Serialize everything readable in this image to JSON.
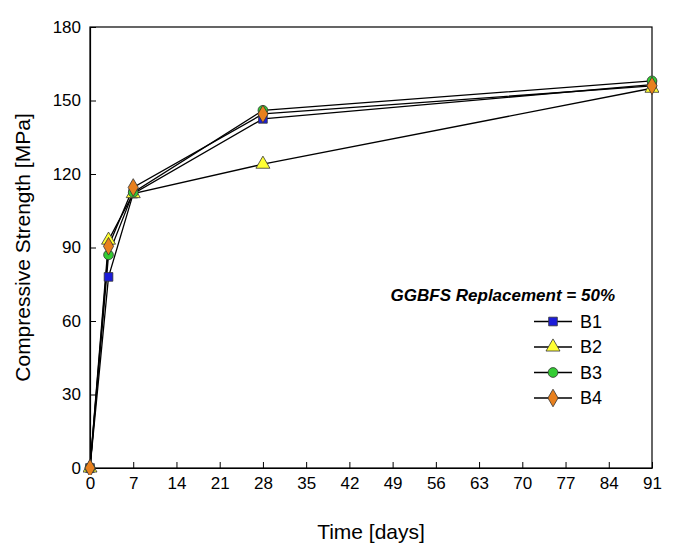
{
  "chart_data": {
    "type": "line",
    "x_label": "Time [days]",
    "y_label": "Compressive Strength [MPa]",
    "annotations": [
      "GGBFS Replacement = 50%"
    ],
    "x": [
      0,
      3,
      7,
      28,
      91
    ],
    "series": [
      {
        "name": "B1",
        "color": "#1c1cd9",
        "marker": "square",
        "values": [
          0,
          78,
          112,
          142.5,
          156.5
        ]
      },
      {
        "name": "B2",
        "color": "#ffff33",
        "marker": "triangle",
        "values": [
          0,
          93,
          112,
          124,
          155
        ]
      },
      {
        "name": "B3",
        "color": "#33cc33",
        "marker": "circle",
        "values": [
          0,
          87,
          112.5,
          146,
          158
        ]
      },
      {
        "name": "B4",
        "color": "#e8801e",
        "marker": "diamond",
        "values": [
          0,
          90.5,
          114.5,
          144.5,
          156
        ]
      }
    ],
    "xlim": [
      0,
      91
    ],
    "xticks": [
      0,
      7,
      14,
      21,
      28,
      35,
      42,
      49,
      56,
      63,
      70,
      77,
      84,
      91
    ],
    "ylim": [
      0,
      180
    ],
    "yticks": [
      0,
      30,
      60,
      90,
      120,
      150,
      180
    ],
    "grid": false,
    "legend": "lower right"
  }
}
